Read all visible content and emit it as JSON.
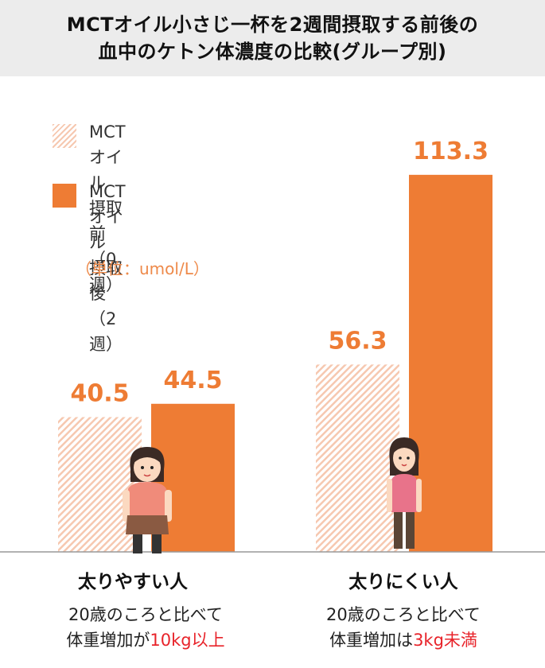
{
  "title": {
    "line1": "MCTオイル小さじ一杯を2週間摂取する前後の",
    "line2": "血中のケトン体濃度の比較(グループ別)"
  },
  "legend": {
    "pre": {
      "line1": "MCTオイル",
      "line2": "摂取前（0週）"
    },
    "post": {
      "line1": "MCTオイル",
      "line2": "摂取後（2週）"
    }
  },
  "unit_label": "（単位：umol/L）",
  "chart_data": {
    "type": "bar",
    "categories": [
      "太りやすい人",
      "太りにくい人"
    ],
    "series": [
      {
        "name": "MCTオイル摂取前（0週）",
        "values": [
          40.5,
          56.3
        ],
        "color": "#f6c8b0"
      },
      {
        "name": "MCTオイル摂取後（2週）",
        "values": [
          44.5,
          113.3
        ],
        "color": "#ee7c34"
      }
    ],
    "value_labels": [
      "40.5",
      "44.5",
      "56.3",
      "113.3"
    ],
    "ylim": [
      0,
      140
    ],
    "grid": false
  },
  "groups": [
    {
      "label": "太りやすい人",
      "desc1": "20歳のころと比べて",
      "desc2_prefix": "体重増加が",
      "desc2_highlight": "10kg以上"
    },
    {
      "label": "太りにくい人",
      "desc1": "20歳のころと比べて",
      "desc2_prefix": "体重増加は",
      "desc2_highlight": "3kg未満"
    }
  ],
  "colors": {
    "accent": "#ee7c34",
    "highlight": "#e8232a",
    "label": "#ee8a4a"
  }
}
